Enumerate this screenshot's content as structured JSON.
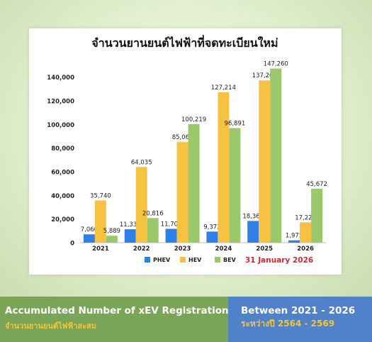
{
  "chart_data": {
    "type": "bar",
    "title": "จำนวนยานยนต์ไฟฟ้าที่จดทะเบียนใหม่",
    "categories": [
      "2021",
      "2022",
      "2023",
      "2024",
      "2025",
      "2026"
    ],
    "series": [
      {
        "name": "PHEV",
        "color": "#2f80e6",
        "values": [
          7060,
          11331,
          11703,
          9372,
          18368,
          1975
        ],
        "labels": [
          "7,060",
          "11,331",
          "11,703",
          "9,372",
          "18,368",
          "1,975"
        ]
      },
      {
        "name": "HEV",
        "color": "#f5c242",
        "values": [
          35740,
          64035,
          85069,
          127214,
          137263,
          17224
        ],
        "labels": [
          "35,740",
          "64,035",
          "85,069",
          "127,214",
          "137,263",
          "17,224"
        ]
      },
      {
        "name": "BEV",
        "color": "#9bc86a",
        "values": [
          5889,
          20816,
          100219,
          96891,
          147260,
          45672
        ],
        "labels": [
          "5,889",
          "20,816",
          "100,219",
          "96,891",
          "147,260",
          "45,672"
        ]
      }
    ],
    "yticks": [
      "0",
      "20,000",
      "40,000",
      "60,000",
      "80,000",
      "100,000",
      "120,000",
      "140,000"
    ],
    "ylim": [
      0,
      150000
    ],
    "grid": false,
    "legend": "bottom",
    "annotation": "31 January 2026",
    "annotation_color": "#d8262f"
  },
  "footer": {
    "left_title": "Accumulated Number of xEV Registration",
    "left_subtitle": "จำนวนยานยนต์ไฟฟ้าสะสม",
    "right_title": "Between 2021 - 2026",
    "right_subtitle": "ระหว่างปี 2564 - 2569"
  }
}
